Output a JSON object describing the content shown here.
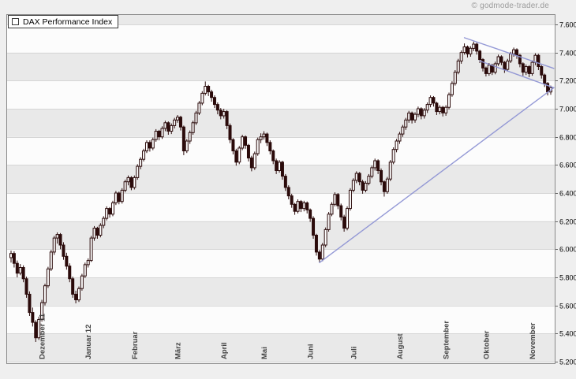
{
  "watermark": "© godmode-trader.de",
  "legend": {
    "label": "DAX Performance Index"
  },
  "chart_data": {
    "type": "candlestick",
    "title": "DAX Performance Index",
    "grid": true,
    "y_axis": {
      "side": "right",
      "min": 5200,
      "max": 7600,
      "step": 200,
      "ticks": [
        {
          "value": 5200,
          "label": "5.200"
        },
        {
          "value": 5400,
          "label": "5.400"
        },
        {
          "value": 5600,
          "label": "5.600"
        },
        {
          "value": 5800,
          "label": "5.800"
        },
        {
          "value": 6000,
          "label": "6.000"
        },
        {
          "value": 6200,
          "label": "6.200"
        },
        {
          "value": 6400,
          "label": "6.400"
        },
        {
          "value": 6600,
          "label": "6.600"
        },
        {
          "value": 6800,
          "label": "6.800"
        },
        {
          "value": 7000,
          "label": "7.000"
        },
        {
          "value": 7200,
          "label": "7.200"
        },
        {
          "value": 7400,
          "label": "7.400"
        },
        {
          "value": 7600,
          "label": "7.600"
        }
      ]
    },
    "x_axis": {
      "months": [
        {
          "label": "Dezember 11",
          "start_index": 10
        },
        {
          "label": "Januar 12",
          "start_index": 25
        },
        {
          "label": "Februar",
          "start_index": 40
        },
        {
          "label": "März",
          "start_index": 54
        },
        {
          "label": "April",
          "start_index": 69
        },
        {
          "label": "Mai",
          "start_index": 82
        },
        {
          "label": "Juni",
          "start_index": 97
        },
        {
          "label": "Juli",
          "start_index": 111
        },
        {
          "label": "August",
          "start_index": 126
        },
        {
          "label": "September",
          "start_index": 141
        },
        {
          "label": "Oktober",
          "start_index": 154
        },
        {
          "label": "November",
          "start_index": 169
        }
      ]
    },
    "trendlines": [
      {
        "name": "ascending-support",
        "from_index": 100,
        "from_price": 5905,
        "to_index": 176,
        "to_price": 7150
      },
      {
        "name": "upper-descending-resistance",
        "from_index": 147,
        "from_price": 7505,
        "to_index": 176,
        "to_price": 7287
      },
      {
        "name": "lower-descending-resistance",
        "from_index": 152,
        "from_price": 7340,
        "to_index": 176,
        "to_price": 7150
      }
    ],
    "colors": {
      "band_gray": "#e9e9e9",
      "band_white": "#fcfcfc",
      "grid": "#d6d6d6",
      "frame": "#8a8a8a",
      "candle": "#2b0b0b",
      "candle_up": "#ffffff",
      "trendline": "#8f94d4",
      "month_label": "#454545",
      "tick_label": "#000000"
    },
    "candles": [
      [
        5940,
        5990,
        5905,
        5970
      ],
      [
        5970,
        5985,
        5870,
        5900
      ],
      [
        5900,
        5920,
        5800,
        5830
      ],
      [
        5830,
        5895,
        5815,
        5870
      ],
      [
        5870,
        5885,
        5765,
        5790
      ],
      [
        5790,
        5805,
        5655,
        5680
      ],
      [
        5680,
        5700,
        5525,
        5550
      ],
      [
        5550,
        5585,
        5450,
        5480
      ],
      [
        5480,
        5495,
        5340,
        5370
      ],
      [
        5370,
        5520,
        5355,
        5500
      ],
      [
        5500,
        5640,
        5485,
        5620
      ],
      [
        5620,
        5755,
        5600,
        5740
      ],
      [
        5740,
        5875,
        5725,
        5860
      ],
      [
        5860,
        5995,
        5845,
        5980
      ],
      [
        5980,
        6095,
        5960,
        6080
      ],
      [
        6080,
        6120,
        6040,
        6105
      ],
      [
        6105,
        6115,
        6000,
        6030
      ],
      [
        6030,
        6050,
        5925,
        5950
      ],
      [
        5950,
        5975,
        5855,
        5880
      ],
      [
        5880,
        5900,
        5765,
        5790
      ],
      [
        5790,
        5805,
        5655,
        5680
      ],
      [
        5680,
        5705,
        5615,
        5640
      ],
      [
        5640,
        5735,
        5625,
        5720
      ],
      [
        5720,
        5825,
        5705,
        5810
      ],
      [
        5810,
        5905,
        5795,
        5890
      ],
      [
        5890,
        5935,
        5870,
        5920
      ],
      [
        5920,
        6095,
        5910,
        6080
      ],
      [
        6080,
        6165,
        6060,
        6150
      ],
      [
        6150,
        6160,
        6075,
        6100
      ],
      [
        6100,
        6185,
        6085,
        6170
      ],
      [
        6170,
        6235,
        6150,
        6220
      ],
      [
        6220,
        6305,
        6205,
        6290
      ],
      [
        6290,
        6300,
        6225,
        6250
      ],
      [
        6250,
        6345,
        6235,
        6330
      ],
      [
        6330,
        6415,
        6315,
        6400
      ],
      [
        6400,
        6410,
        6320,
        6340
      ],
      [
        6340,
        6435,
        6325,
        6420
      ],
      [
        6420,
        6495,
        6405,
        6480
      ],
      [
        6480,
        6525,
        6455,
        6510
      ],
      [
        6510,
        6520,
        6420,
        6440
      ],
      [
        6440,
        6525,
        6425,
        6510
      ],
      [
        6510,
        6605,
        6495,
        6590
      ],
      [
        6590,
        6655,
        6570,
        6640
      ],
      [
        6640,
        6715,
        6625,
        6700
      ],
      [
        6700,
        6775,
        6685,
        6760
      ],
      [
        6760,
        6775,
        6695,
        6720
      ],
      [
        6720,
        6795,
        6705,
        6780
      ],
      [
        6780,
        6855,
        6765,
        6840
      ],
      [
        6840,
        6850,
        6775,
        6800
      ],
      [
        6800,
        6875,
        6785,
        6860
      ],
      [
        6860,
        6915,
        6840,
        6900
      ],
      [
        6900,
        6910,
        6815,
        6840
      ],
      [
        6840,
        6895,
        6820,
        6880
      ],
      [
        6880,
        6935,
        6860,
        6920
      ],
      [
        6920,
        6955,
        6900,
        6940
      ],
      [
        6940,
        6950,
        6845,
        6870
      ],
      [
        6870,
        6880,
        6670,
        6700
      ],
      [
        6700,
        6785,
        6685,
        6770
      ],
      [
        6770,
        6845,
        6750,
        6830
      ],
      [
        6830,
        6915,
        6815,
        6900
      ],
      [
        6900,
        6985,
        6885,
        6970
      ],
      [
        6970,
        7055,
        6955,
        7040
      ],
      [
        7040,
        7125,
        7025,
        7110
      ],
      [
        7110,
        7194,
        7095,
        7160
      ],
      [
        7160,
        7170,
        7090,
        7120
      ],
      [
        7120,
        7135,
        7050,
        7080
      ],
      [
        7080,
        7095,
        7005,
        7030
      ],
      [
        7030,
        7045,
        6960,
        6990
      ],
      [
        6990,
        7005,
        6925,
        6950
      ],
      [
        6950,
        7000,
        6930,
        6980
      ],
      [
        6980,
        6990,
        6855,
        6880
      ],
      [
        6880,
        6895,
        6755,
        6780
      ],
      [
        6780,
        6790,
        6675,
        6700
      ],
      [
        6700,
        6715,
        6595,
        6620
      ],
      [
        6620,
        6735,
        6605,
        6720
      ],
      [
        6720,
        6815,
        6705,
        6800
      ],
      [
        6800,
        6810,
        6715,
        6740
      ],
      [
        6740,
        6750,
        6625,
        6650
      ],
      [
        6650,
        6665,
        6555,
        6580
      ],
      [
        6580,
        6695,
        6565,
        6680
      ],
      [
        6680,
        6795,
        6665,
        6780
      ],
      [
        6780,
        6825,
        6755,
        6800
      ],
      [
        6800,
        6840,
        6780,
        6820
      ],
      [
        6820,
        6830,
        6735,
        6760
      ],
      [
        6760,
        6775,
        6675,
        6700
      ],
      [
        6700,
        6710,
        6605,
        6630
      ],
      [
        6630,
        6645,
        6535,
        6560
      ],
      [
        6560,
        6635,
        6545,
        6620
      ],
      [
        6620,
        6630,
        6495,
        6520
      ],
      [
        6520,
        6535,
        6415,
        6440
      ],
      [
        6440,
        6455,
        6355,
        6380
      ],
      [
        6380,
        6395,
        6295,
        6320
      ],
      [
        6320,
        6330,
        6245,
        6270
      ],
      [
        6270,
        6355,
        6255,
        6340
      ],
      [
        6340,
        6350,
        6265,
        6290
      ],
      [
        6290,
        6345,
        6270,
        6330
      ],
      [
        6330,
        6340,
        6255,
        6280
      ],
      [
        6280,
        6290,
        6195,
        6220
      ],
      [
        6220,
        6235,
        6075,
        6100
      ],
      [
        6100,
        6110,
        5955,
        5980
      ],
      [
        5980,
        5995,
        5910,
        5930
      ],
      [
        5930,
        6045,
        5915,
        6030
      ],
      [
        6030,
        6155,
        6015,
        6140
      ],
      [
        6140,
        6265,
        6125,
        6250
      ],
      [
        6250,
        6335,
        6235,
        6320
      ],
      [
        6320,
        6405,
        6305,
        6390
      ],
      [
        6390,
        6400,
        6285,
        6310
      ],
      [
        6310,
        6325,
        6205,
        6230
      ],
      [
        6230,
        6245,
        6125,
        6150
      ],
      [
        6150,
        6305,
        6135,
        6290
      ],
      [
        6290,
        6435,
        6275,
        6420
      ],
      [
        6420,
        6505,
        6405,
        6490
      ],
      [
        6490,
        6555,
        6470,
        6540
      ],
      [
        6540,
        6550,
        6455,
        6480
      ],
      [
        6480,
        6495,
        6395,
        6420
      ],
      [
        6420,
        6485,
        6405,
        6470
      ],
      [
        6470,
        6535,
        6455,
        6520
      ],
      [
        6520,
        6595,
        6505,
        6580
      ],
      [
        6580,
        6645,
        6560,
        6630
      ],
      [
        6630,
        6640,
        6535,
        6560
      ],
      [
        6560,
        6575,
        6455,
        6480
      ],
      [
        6480,
        6490,
        6375,
        6410
      ],
      [
        6410,
        6515,
        6395,
        6500
      ],
      [
        6500,
        6635,
        6485,
        6620
      ],
      [
        6620,
        6725,
        6605,
        6710
      ],
      [
        6710,
        6785,
        6690,
        6770
      ],
      [
        6770,
        6835,
        6750,
        6820
      ],
      [
        6820,
        6885,
        6800,
        6870
      ],
      [
        6870,
        6935,
        6850,
        6920
      ],
      [
        6920,
        6985,
        6900,
        6970
      ],
      [
        6970,
        6980,
        6895,
        6920
      ],
      [
        6920,
        6975,
        6900,
        6960
      ],
      [
        6960,
        7015,
        6940,
        7000
      ],
      [
        7000,
        7010,
        6925,
        6950
      ],
      [
        6950,
        7005,
        6930,
        6990
      ],
      [
        6990,
        7045,
        6970,
        7030
      ],
      [
        7030,
        7095,
        7010,
        7080
      ],
      [
        7080,
        7090,
        7015,
        7040
      ],
      [
        7040,
        7050,
        6955,
        6980
      ],
      [
        6980,
        7025,
        6960,
        7010
      ],
      [
        7010,
        7020,
        6945,
        6970
      ],
      [
        6970,
        7025,
        6950,
        7010
      ],
      [
        7010,
        7115,
        6995,
        7100
      ],
      [
        7100,
        7195,
        7085,
        7180
      ],
      [
        7180,
        7275,
        7165,
        7260
      ],
      [
        7260,
        7355,
        7245,
        7340
      ],
      [
        7340,
        7415,
        7320,
        7400
      ],
      [
        7400,
        7465,
        7385,
        7440
      ],
      [
        7440,
        7450,
        7365,
        7390
      ],
      [
        7390,
        7445,
        7370,
        7430
      ],
      [
        7430,
        7478,
        7410,
        7460
      ],
      [
        7460,
        7470,
        7385,
        7410
      ],
      [
        7410,
        7420,
        7325,
        7350
      ],
      [
        7350,
        7360,
        7265,
        7290
      ],
      [
        7290,
        7300,
        7230,
        7250
      ],
      [
        7250,
        7325,
        7235,
        7310
      ],
      [
        7310,
        7320,
        7240,
        7260
      ],
      [
        7260,
        7335,
        7245,
        7320
      ],
      [
        7320,
        7385,
        7305,
        7370
      ],
      [
        7370,
        7380,
        7310,
        7330
      ],
      [
        7330,
        7340,
        7255,
        7280
      ],
      [
        7280,
        7355,
        7265,
        7340
      ],
      [
        7340,
        7405,
        7325,
        7390
      ],
      [
        7390,
        7435,
        7370,
        7420
      ],
      [
        7420,
        7430,
        7355,
        7380
      ],
      [
        7380,
        7390,
        7295,
        7320
      ],
      [
        7320,
        7330,
        7235,
        7260
      ],
      [
        7260,
        7315,
        7240,
        7300
      ],
      [
        7300,
        7310,
        7225,
        7250
      ],
      [
        7250,
        7345,
        7235,
        7330
      ],
      [
        7330,
        7395,
        7310,
        7380
      ],
      [
        7380,
        7390,
        7275,
        7300
      ],
      [
        7300,
        7310,
        7215,
        7240
      ],
      [
        7240,
        7250,
        7155,
        7180
      ],
      [
        7180,
        7190,
        7095,
        7120
      ],
      [
        7120,
        7165,
        7100,
        7150
      ]
    ]
  }
}
